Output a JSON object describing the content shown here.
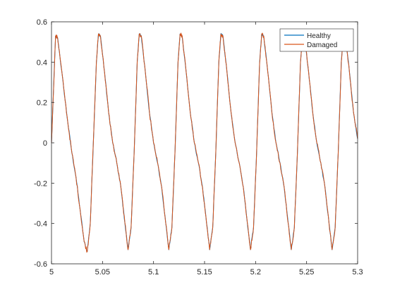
{
  "chart_data": {
    "type": "line",
    "title": "",
    "xlabel": "",
    "ylabel": "",
    "xlim": [
      5,
      5.3
    ],
    "ylim": [
      -0.6,
      0.6
    ],
    "xticks": [
      5,
      5.05,
      5.1,
      5.15,
      5.2,
      5.25,
      5.3
    ],
    "xtick_labels": [
      "5",
      "5.05",
      "5.1",
      "5.15",
      "5.2",
      "5.25",
      "5.3"
    ],
    "yticks": [
      -0.6,
      -0.4,
      -0.2,
      0,
      0.2,
      0.4,
      0.6
    ],
    "ytick_labels": [
      "-0.6",
      "-0.4",
      "-0.2",
      "0",
      "0.2",
      "0.4",
      "0.6"
    ],
    "grid": false,
    "legend_placement": "top-right",
    "period": 0.04,
    "x": [
      5.0,
      5.004,
      5.006,
      5.008,
      5.012,
      5.016,
      5.02,
      5.024,
      5.028,
      5.032,
      5.035,
      5.038,
      5.041,
      5.044,
      5.046,
      5.048,
      5.052,
      5.056,
      5.06,
      5.064,
      5.068,
      5.072,
      5.075,
      5.078,
      5.081,
      5.084,
      5.086,
      5.088,
      5.092,
      5.096,
      5.1,
      5.104,
      5.108,
      5.112,
      5.115,
      5.118,
      5.121,
      5.124,
      5.126,
      5.128,
      5.132,
      5.136,
      5.14,
      5.144,
      5.148,
      5.152,
      5.155,
      5.158,
      5.161,
      5.164,
      5.166,
      5.168,
      5.172,
      5.176,
      5.18,
      5.184,
      5.188,
      5.192,
      5.195,
      5.198,
      5.201,
      5.204,
      5.206,
      5.208,
      5.212,
      5.216,
      5.22,
      5.224,
      5.228,
      5.232,
      5.235,
      5.238,
      5.241,
      5.244,
      5.246,
      5.248,
      5.252,
      5.256,
      5.26,
      5.264,
      5.268,
      5.272,
      5.275,
      5.278,
      5.281,
      5.284,
      5.286,
      5.288,
      5.292,
      5.296,
      5.3
    ],
    "series": [
      {
        "name": "Healthy",
        "color": "#0072BD",
        "values": [
          0.0,
          0.53,
          0.52,
          0.44,
          0.27,
          0.1,
          -0.05,
          -0.17,
          -0.33,
          -0.49,
          -0.54,
          -0.4,
          0.0,
          0.4,
          0.54,
          0.53,
          0.35,
          0.15,
          0.0,
          -0.1,
          -0.22,
          -0.4,
          -0.53,
          -0.42,
          -0.05,
          0.4,
          0.54,
          0.53,
          0.35,
          0.15,
          0.0,
          -0.1,
          -0.22,
          -0.4,
          -0.53,
          -0.42,
          -0.05,
          0.4,
          0.54,
          0.53,
          0.35,
          0.15,
          0.0,
          -0.1,
          -0.22,
          -0.4,
          -0.53,
          -0.42,
          -0.05,
          0.4,
          0.54,
          0.53,
          0.35,
          0.15,
          0.0,
          -0.1,
          -0.22,
          -0.4,
          -0.53,
          -0.42,
          -0.05,
          0.4,
          0.54,
          0.53,
          0.35,
          0.15,
          0.0,
          -0.1,
          -0.22,
          -0.4,
          -0.53,
          -0.42,
          -0.05,
          0.4,
          0.54,
          0.53,
          0.35,
          0.15,
          0.0,
          -0.1,
          -0.22,
          -0.4,
          -0.53,
          -0.42,
          -0.05,
          0.4,
          0.54,
          0.53,
          0.35,
          0.15,
          0.02
        ]
      },
      {
        "name": "Damaged",
        "color": "#D95319",
        "values": [
          0.0,
          0.53,
          0.52,
          0.44,
          0.27,
          0.1,
          -0.05,
          -0.17,
          -0.33,
          -0.49,
          -0.54,
          -0.4,
          0.0,
          0.4,
          0.54,
          0.53,
          0.35,
          0.15,
          0.0,
          -0.1,
          -0.22,
          -0.4,
          -0.53,
          -0.42,
          -0.05,
          0.4,
          0.54,
          0.53,
          0.35,
          0.15,
          0.0,
          -0.1,
          -0.22,
          -0.4,
          -0.53,
          -0.42,
          -0.05,
          0.4,
          0.54,
          0.53,
          0.35,
          0.15,
          0.0,
          -0.1,
          -0.22,
          -0.4,
          -0.53,
          -0.42,
          -0.05,
          0.4,
          0.54,
          0.53,
          0.35,
          0.15,
          0.0,
          -0.1,
          -0.22,
          -0.4,
          -0.53,
          -0.42,
          -0.05,
          0.4,
          0.54,
          0.53,
          0.35,
          0.15,
          0.0,
          -0.1,
          -0.22,
          -0.4,
          -0.53,
          -0.42,
          -0.05,
          0.4,
          0.54,
          0.53,
          0.35,
          0.15,
          0.0,
          -0.1,
          -0.22,
          -0.4,
          -0.53,
          -0.42,
          -0.05,
          0.4,
          0.54,
          0.53,
          0.35,
          0.15,
          0.02
        ]
      }
    ]
  }
}
